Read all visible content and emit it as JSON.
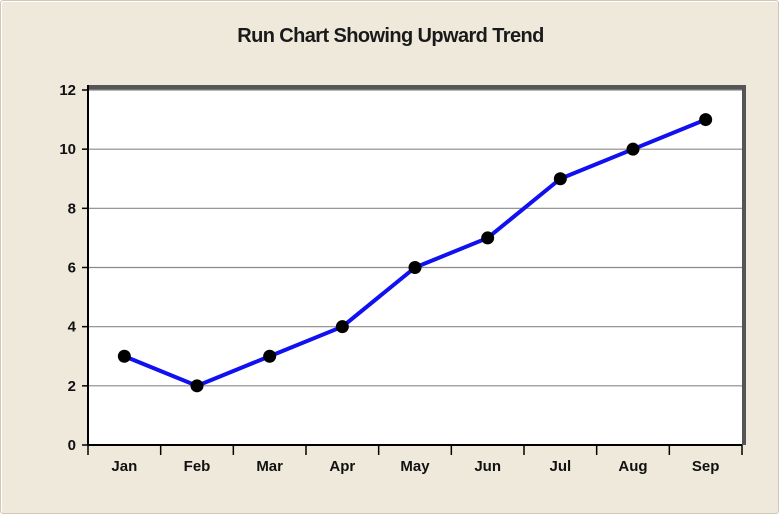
{
  "chart_data": {
    "type": "line",
    "title": "Run Chart Showing Upward Trend",
    "xlabel": "",
    "ylabel": "",
    "categories": [
      "Jan",
      "Feb",
      "Mar",
      "Apr",
      "May",
      "Jun",
      "Jul",
      "Aug",
      "Sep"
    ],
    "series": [
      {
        "values": [
          3,
          2,
          3,
          4,
          6,
          7,
          9,
          10,
          11
        ],
        "color": "#1010f0",
        "marker_color": "#000000"
      }
    ],
    "ylim": [
      0,
      12
    ],
    "yticks": [
      "0",
      "2",
      "4",
      "6",
      "8",
      "10",
      "12"
    ],
    "grid": "horizontal",
    "legend": "none",
    "background_color": "#efe9dc",
    "plot_background_color": "#ffffff"
  }
}
